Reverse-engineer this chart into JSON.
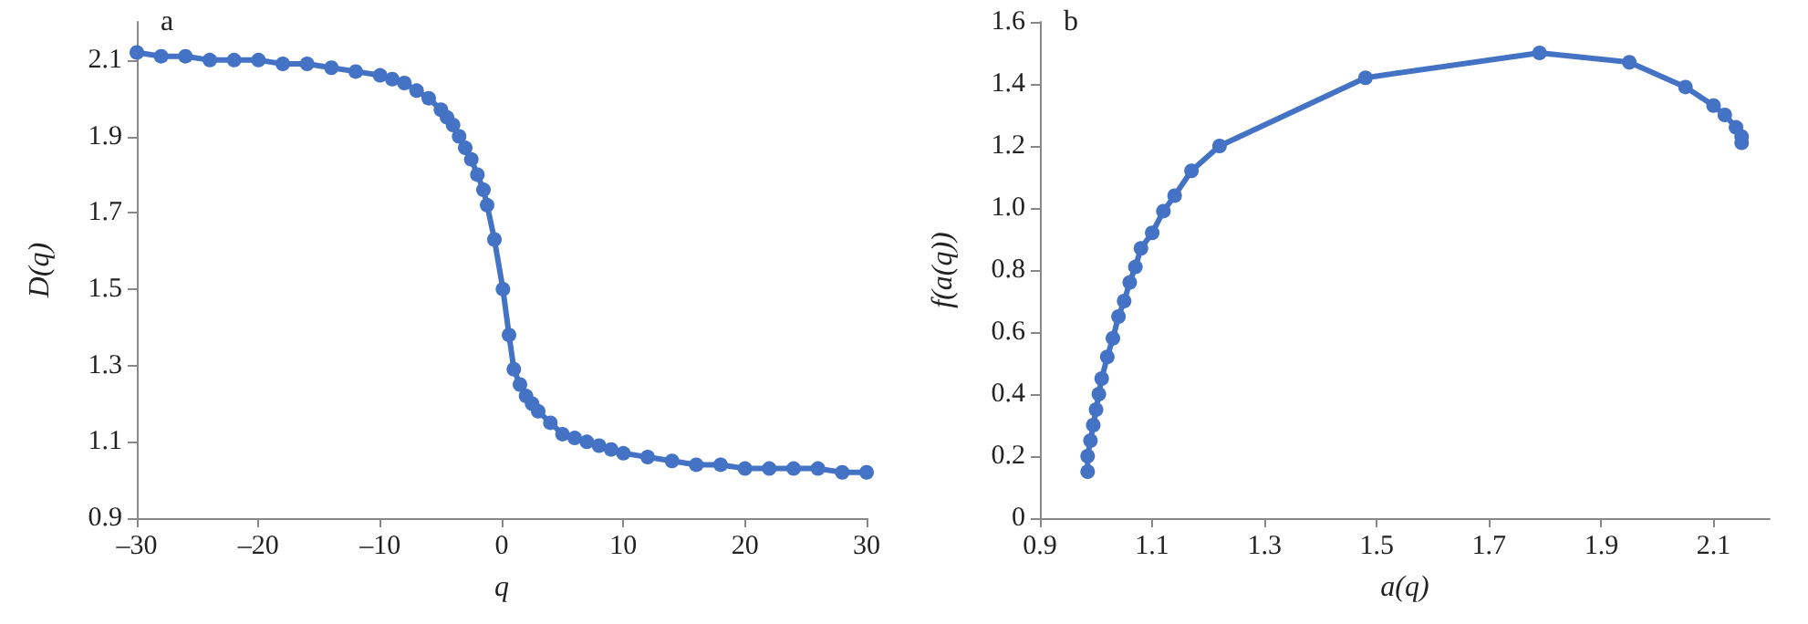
{
  "chart_data": [
    {
      "type": "line",
      "annotations": [
        "a"
      ],
      "xlabel": "q",
      "ylabel": "D(q)",
      "xlim": [
        -30,
        30
      ],
      "xticks": [
        {
          "value": -30,
          "label": "–30"
        },
        {
          "value": -20,
          "label": "–20"
        },
        {
          "value": -10,
          "label": "–10"
        },
        0,
        10,
        20,
        30
      ],
      "ylim": [
        0.9,
        2.2
      ],
      "yticks": [
        0.9,
        1.1,
        1.3,
        1.5,
        1.7,
        1.9,
        2.1
      ],
      "grid": false,
      "marker": "circle",
      "line_style": "solid",
      "series": [
        {
          "color": "#4472c4",
          "x": [
            -30,
            -28,
            -26,
            -24,
            -22,
            -20,
            -18,
            -16,
            -14,
            -12,
            -10,
            -9,
            -8,
            -7,
            -6,
            -5,
            -4.5,
            -4,
            -3.5,
            -3,
            -2.5,
            -2,
            -1.5,
            -1.2,
            -0.6,
            0.1,
            0.6,
            1,
            1.5,
            2,
            2.5,
            3,
            4,
            5,
            6,
            7,
            8,
            9,
            10,
            12,
            14,
            16,
            18,
            20,
            22,
            24,
            26,
            28,
            30
          ],
          "values": [
            2.12,
            2.11,
            2.11,
            2.1,
            2.1,
            2.1,
            2.09,
            2.09,
            2.08,
            2.07,
            2.06,
            2.05,
            2.04,
            2.02,
            2.0,
            1.97,
            1.95,
            1.93,
            1.9,
            1.87,
            1.84,
            1.8,
            1.76,
            1.72,
            1.63,
            1.5,
            1.38,
            1.29,
            1.25,
            1.22,
            1.2,
            1.18,
            1.15,
            1.12,
            1.11,
            1.1,
            1.09,
            1.08,
            1.07,
            1.06,
            1.05,
            1.04,
            1.04,
            1.03,
            1.03,
            1.03,
            1.03,
            1.02,
            1.02
          ]
        }
      ]
    },
    {
      "type": "line",
      "annotations": [
        "b"
      ],
      "xlabel": "a(q)",
      "ylabel": "f(a(q))",
      "xlim": [
        0.9,
        2.2
      ],
      "xticks": [
        0.9,
        1.1,
        1.3,
        1.5,
        1.7,
        1.9,
        2.1
      ],
      "ylim": [
        0,
        1.6
      ],
      "yticks": [
        0,
        0.2,
        0.4,
        0.6,
        0.8,
        {
          "value": 1,
          "label": "1.0"
        },
        1.2,
        1.4,
        1.6
      ],
      "grid": false,
      "marker": "circle",
      "line_style": "solid",
      "series": [
        {
          "color": "#4472c4",
          "x": [
            0.985,
            0.985,
            0.99,
            0.995,
            1.0,
            1.005,
            1.01,
            1.02,
            1.03,
            1.04,
            1.05,
            1.06,
            1.07,
            1.08,
            1.1,
            1.12,
            1.14,
            1.17,
            1.22,
            1.48,
            1.79,
            1.95,
            2.05,
            2.1,
            2.12,
            2.14,
            2.15,
            2.15
          ],
          "values": [
            0.15,
            0.2,
            0.25,
            0.3,
            0.35,
            0.4,
            0.45,
            0.52,
            0.58,
            0.65,
            0.7,
            0.76,
            0.81,
            0.87,
            0.92,
            0.99,
            1.04,
            1.12,
            1.2,
            1.42,
            1.5,
            1.47,
            1.39,
            1.33,
            1.3,
            1.26,
            1.23,
            1.21
          ]
        }
      ]
    }
  ]
}
